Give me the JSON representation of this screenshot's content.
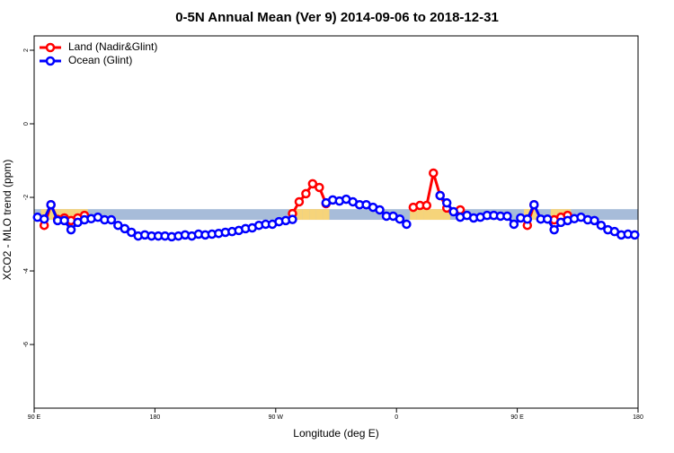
{
  "chart_data": {
    "type": "line",
    "title": "0-5N Annual Mean (Ver 9)   2014-09-06 to 2018-12-31",
    "xlabel": "Longitude (deg E)",
    "ylabel": "XCO2 - MLO trend (ppm)",
    "xlim": [
      90,
      540
    ],
    "ylim": [
      -7.73,
      2.39
    ],
    "xticks": [
      {
        "value": 90,
        "label": "90 E"
      },
      180,
      {
        "value": 270,
        "label": "90 W"
      },
      {
        "value": 360,
        "label": "0"
      },
      {
        "value": 450,
        "label": "90 E"
      },
      {
        "value": 540,
        "label": "180"
      }
    ],
    "yticks": [
      -6,
      -4,
      -2,
      0,
      2
    ],
    "legend": "top-left",
    "band": [
      -2.61,
      -2.32
    ],
    "band_color": "#a7bcd9",
    "land_band_color": "#f6d47a",
    "x": [
      92.5,
      97.5,
      102.5,
      107.5,
      112.5,
      117.5,
      122.5,
      127.5,
      132.5,
      137.5,
      142.5,
      147.5,
      152.5,
      157.5,
      162.5,
      167.5,
      172.5,
      177.5,
      182.5,
      187.5,
      192.5,
      197.5,
      202.5,
      207.5,
      212.5,
      217.5,
      222.5,
      227.5,
      232.5,
      237.5,
      242.5,
      247.5,
      252.5,
      257.5,
      262.5,
      267.5,
      272.5,
      277.5,
      282.5,
      287.5,
      292.5,
      297.5,
      302.5,
      307.5,
      312.5,
      317.5,
      322.5,
      327.5,
      332.5,
      337.5,
      342.5,
      347.5,
      352.5,
      357.5,
      362.5,
      367.5,
      372.5,
      377.5,
      382.5,
      387.5,
      392.5,
      397.5,
      402.5,
      407.5,
      412.5,
      417.5,
      422.5,
      427.5,
      432.5,
      437.5,
      442.5,
      447.5,
      452.5,
      457.5,
      462.5,
      467.5,
      472.5,
      477.5,
      482.5,
      487.5,
      492.5,
      497.5,
      502.5,
      507.5,
      512.5,
      517.5,
      522.5,
      527.5,
      532.5,
      537.5
    ],
    "series": [
      {
        "name": "Land (Nadir&Glint)",
        "color": "#ff0000",
        "values": [
          null,
          -2.76,
          -2.2,
          -2.6,
          -2.56,
          -2.63,
          -2.56,
          -2.49,
          null,
          null,
          null,
          null,
          null,
          null,
          null,
          null,
          null,
          null,
          null,
          null,
          null,
          null,
          null,
          null,
          null,
          null,
          null,
          null,
          null,
          null,
          null,
          null,
          null,
          null,
          null,
          null,
          null,
          null,
          -2.44,
          -2.12,
          -1.9,
          -1.63,
          -1.73,
          -2.17,
          null,
          null,
          null,
          null,
          null,
          null,
          null,
          null,
          null,
          null,
          null,
          null,
          -2.27,
          -2.22,
          -2.22,
          -1.34,
          -1.95,
          -2.29,
          null,
          -2.34,
          null,
          null,
          null,
          null,
          null,
          null,
          null,
          null,
          null,
          -2.76,
          -2.2,
          null,
          null,
          -2.61,
          -2.54,
          -2.49,
          null,
          null,
          null,
          null,
          null,
          null,
          null,
          null,
          null,
          null
        ]
      },
      {
        "name": "Ocean (Glint)",
        "color": "#0000ff",
        "values": [
          -2.54,
          -2.59,
          -2.2,
          -2.63,
          -2.63,
          -2.88,
          -2.68,
          -2.61,
          -2.58,
          -2.54,
          -2.61,
          -2.61,
          -2.76,
          -2.85,
          -2.95,
          -3.05,
          -3.02,
          -3.05,
          -3.05,
          -3.05,
          -3.07,
          -3.05,
          -3.02,
          -3.05,
          -3.0,
          -3.02,
          -3.0,
          -2.98,
          -2.95,
          -2.93,
          -2.9,
          -2.85,
          -2.83,
          -2.76,
          -2.73,
          -2.73,
          -2.66,
          -2.63,
          -2.6,
          null,
          null,
          null,
          null,
          -2.15,
          -2.07,
          -2.1,
          -2.05,
          -2.12,
          -2.2,
          -2.2,
          -2.27,
          -2.34,
          -2.51,
          -2.51,
          -2.59,
          -2.73,
          null,
          null,
          null,
          null,
          -1.95,
          -2.15,
          -2.39,
          -2.54,
          -2.49,
          -2.56,
          -2.54,
          -2.49,
          -2.49,
          -2.51,
          -2.51,
          -2.73,
          -2.56,
          -2.59,
          -2.2,
          -2.59,
          -2.59,
          -2.88,
          -2.68,
          -2.63,
          -2.58,
          -2.54,
          -2.61,
          -2.63,
          -2.76,
          -2.88,
          -2.93,
          -3.02,
          -3.0,
          -3.02
        ]
      }
    ]
  }
}
